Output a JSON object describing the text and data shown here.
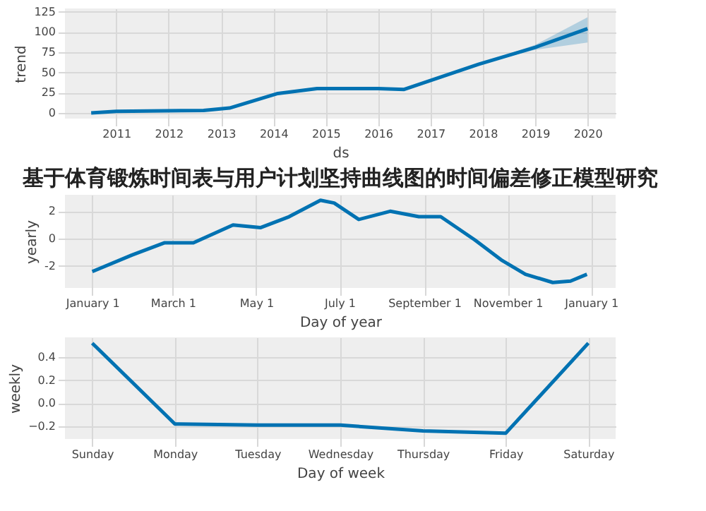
{
  "chart_data": [
    {
      "type": "line",
      "xlabel": "ds",
      "ylabel": "trend",
      "grid": true,
      "x": [
        "2010-07-10",
        "2011-01",
        "2012-09",
        "2013-03",
        "2014-02",
        "2014-11",
        "2016-01",
        "2016-07",
        "2017-12",
        "2019-01",
        "2020-01"
      ],
      "xlim": [
        "2010-01-08",
        "2020-07-15"
      ],
      "xticks": [
        "2011",
        "2012",
        "2013",
        "2014",
        "2015",
        "2016",
        "2017",
        "2018",
        "2019",
        "2020"
      ],
      "ylim": [
        -7,
        129
      ],
      "yticks": [
        0,
        25,
        50,
        75,
        100,
        125
      ],
      "series": [
        {
          "color": "#0072b2",
          "values": [
            0,
            2,
            3,
            6,
            24,
            30,
            30,
            29,
            60,
            81,
            104
          ],
          "lower": [
            0,
            2,
            3,
            6,
            24,
            30,
            30,
            29,
            60,
            78,
            87
          ],
          "upper": [
            0,
            2,
            3,
            6,
            24,
            30,
            30,
            29,
            60,
            84,
            118
          ]
        }
      ]
    },
    {
      "type": "line",
      "title": "基于体育锻炼时间表与用户计划坚持曲线图的时间偏差修正模型研究",
      "xlabel": "Day of year",
      "ylabel": "yearly",
      "grid": true,
      "x": [
        "2017-01-01",
        "2017-01-30",
        "2017-02-23",
        "2017-03-16",
        "2017-04-14",
        "2017-05-04",
        "2017-05-25",
        "2017-06-17",
        "2017-06-27",
        "2017-07-15",
        "2017-08-07",
        "2017-08-28",
        "2017-09-13",
        "2017-10-08",
        "2017-10-28",
        "2017-11-14",
        "2017-12-04",
        "2017-12-17",
        "2017-12-29"
      ],
      "xlim": [
        "2016-12-12",
        "2018-01-19"
      ],
      "xticks": [
        {
          "value": "2017-01-01",
          "label": "January 1"
        },
        {
          "value": "2017-03-01",
          "label": "March 1"
        },
        {
          "value": "2017-05-01",
          "label": "May 1"
        },
        {
          "value": "2017-07-01",
          "label": "July 1"
        },
        {
          "value": "2017-09-01",
          "label": "September 1"
        },
        {
          "value": "2017-11-01",
          "label": "November 1"
        },
        {
          "value": "2018-01-01",
          "label": "January 1"
        }
      ],
      "ylim": [
        -3.6,
        3.2
      ],
      "yticks": [
        -2,
        0,
        2
      ],
      "series": [
        {
          "color": "#0072b2",
          "values": [
            -2.4,
            -1.2,
            -0.3,
            -0.3,
            1.0,
            0.8,
            1.6,
            2.8,
            2.6,
            1.4,
            2.0,
            1.6,
            1.6,
            -0.1,
            -1.6,
            -2.6,
            -3.2,
            -3.1,
            -2.6
          ]
        }
      ]
    },
    {
      "type": "line",
      "xlabel": "Day of week",
      "ylabel": "weekly",
      "grid": true,
      "categories": [
        "Sunday",
        "Monday",
        "Tuesday",
        "Wednesday",
        "Thursday",
        "Friday",
        "Saturday"
      ],
      "ylim": [
        -0.31,
        0.57
      ],
      "yticks": [
        {
          "value": -0.2,
          "label": "−0.2"
        },
        {
          "value": 0,
          "label": "0.0"
        },
        {
          "value": 0.2,
          "label": "0.2"
        },
        {
          "value": 0.4,
          "label": "0.4"
        }
      ],
      "series": [
        {
          "color": "#0072b2",
          "values": [
            0.52,
            -0.18,
            -0.19,
            -0.19,
            -0.24,
            -0.26,
            0.52
          ]
        }
      ]
    }
  ]
}
